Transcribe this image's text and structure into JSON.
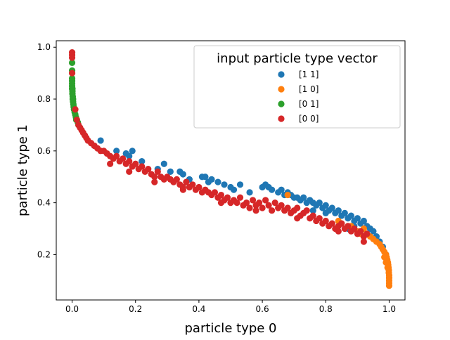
{
  "chart_data": {
    "type": "scatter",
    "title": "",
    "xlabel": "particle type 0",
    "ylabel": "particle type 1",
    "xlim": [
      -0.05,
      1.05
    ],
    "ylim": [
      0.025,
      1.025
    ],
    "xticks": [
      0.0,
      0.2,
      0.4,
      0.6,
      0.8,
      1.0
    ],
    "xtick_labels": [
      "0.0",
      "0.2",
      "0.4",
      "0.6",
      "0.8",
      "1.0"
    ],
    "yticks": [
      0.2,
      0.4,
      0.6,
      0.8,
      1.0
    ],
    "ytick_labels": [
      "0.2",
      "0.4",
      "0.6",
      "0.8",
      "1.0"
    ],
    "grid": false,
    "legend": {
      "title": "input particle type vector",
      "placement": "top-right"
    },
    "series": [
      {
        "name": "[1 1]",
        "color": "#1f77b4",
        "points": [
          [
            0.09,
            0.64
          ],
          [
            0.14,
            0.6
          ],
          [
            0.17,
            0.59
          ],
          [
            0.18,
            0.58
          ],
          [
            0.19,
            0.6
          ],
          [
            0.22,
            0.56
          ],
          [
            0.27,
            0.53
          ],
          [
            0.29,
            0.55
          ],
          [
            0.31,
            0.52
          ],
          [
            0.34,
            0.52
          ],
          [
            0.35,
            0.51
          ],
          [
            0.37,
            0.49
          ],
          [
            0.41,
            0.5
          ],
          [
            0.42,
            0.5
          ],
          [
            0.43,
            0.48
          ],
          [
            0.44,
            0.49
          ],
          [
            0.46,
            0.48
          ],
          [
            0.48,
            0.47
          ],
          [
            0.5,
            0.46
          ],
          [
            0.51,
            0.45
          ],
          [
            0.53,
            0.47
          ],
          [
            0.56,
            0.44
          ],
          [
            0.6,
            0.46
          ],
          [
            0.61,
            0.47
          ],
          [
            0.62,
            0.46
          ],
          [
            0.63,
            0.45
          ],
          [
            0.65,
            0.44
          ],
          [
            0.66,
            0.45
          ],
          [
            0.67,
            0.43
          ],
          [
            0.68,
            0.44
          ],
          [
            0.69,
            0.43
          ],
          [
            0.7,
            0.42
          ],
          [
            0.71,
            0.42
          ],
          [
            0.72,
            0.41
          ],
          [
            0.73,
            0.42
          ],
          [
            0.74,
            0.4
          ],
          [
            0.75,
            0.41
          ],
          [
            0.76,
            0.4
          ],
          [
            0.77,
            0.39
          ],
          [
            0.78,
            0.4
          ],
          [
            0.79,
            0.38
          ],
          [
            0.8,
            0.39
          ],
          [
            0.81,
            0.37
          ],
          [
            0.82,
            0.38
          ],
          [
            0.83,
            0.36
          ],
          [
            0.84,
            0.37
          ],
          [
            0.85,
            0.35
          ],
          [
            0.86,
            0.36
          ],
          [
            0.87,
            0.34
          ],
          [
            0.88,
            0.35
          ],
          [
            0.89,
            0.33
          ],
          [
            0.9,
            0.34
          ],
          [
            0.91,
            0.32
          ],
          [
            0.92,
            0.33
          ],
          [
            0.93,
            0.31
          ],
          [
            0.94,
            0.3
          ],
          [
            0.95,
            0.29
          ],
          [
            0.96,
            0.27
          ],
          [
            0.97,
            0.25
          ],
          [
            0.98,
            0.23
          ],
          [
            0.99,
            0.2
          ],
          [
            0.87,
            0.3
          ],
          [
            0.89,
            0.31
          ],
          [
            0.8,
            0.36
          ],
          [
            0.76,
            0.37
          ]
        ]
      },
      {
        "name": "[1 0]",
        "color": "#ff7f0e",
        "points": [
          [
            0.68,
            0.43
          ],
          [
            0.84,
            0.33
          ],
          [
            0.88,
            0.31
          ],
          [
            0.9,
            0.29
          ],
          [
            0.92,
            0.3
          ],
          [
            0.93,
            0.28
          ],
          [
            0.94,
            0.27
          ],
          [
            0.95,
            0.26
          ],
          [
            0.96,
            0.25
          ],
          [
            0.97,
            0.24
          ],
          [
            0.975,
            0.23
          ],
          [
            0.98,
            0.22
          ],
          [
            0.985,
            0.21
          ],
          [
            0.99,
            0.2
          ],
          [
            0.992,
            0.19
          ],
          [
            0.994,
            0.18
          ],
          [
            0.996,
            0.17
          ],
          [
            0.997,
            0.16
          ],
          [
            0.998,
            0.15
          ],
          [
            0.999,
            0.14
          ],
          [
            0.999,
            0.13
          ],
          [
            1.0,
            0.12
          ],
          [
            1.0,
            0.11
          ],
          [
            1.0,
            0.1
          ],
          [
            1.0,
            0.09
          ],
          [
            1.0,
            0.08
          ],
          [
            0.985,
            0.19
          ],
          [
            0.99,
            0.17
          ],
          [
            0.995,
            0.15
          ],
          [
            0.91,
            0.28
          ]
        ]
      },
      {
        "name": "[0 1]",
        "color": "#2ca02c",
        "points": [
          [
            0.0,
            0.94
          ],
          [
            0.0,
            0.91
          ],
          [
            0.0,
            0.88
          ],
          [
            0.0,
            0.86
          ],
          [
            0.0,
            0.85
          ],
          [
            0.0,
            0.84
          ],
          [
            0.001,
            0.83
          ],
          [
            0.001,
            0.82
          ],
          [
            0.002,
            0.81
          ],
          [
            0.002,
            0.8
          ],
          [
            0.003,
            0.79
          ],
          [
            0.004,
            0.78
          ],
          [
            0.005,
            0.77
          ],
          [
            0.006,
            0.76
          ],
          [
            0.008,
            0.75
          ],
          [
            0.01,
            0.74
          ],
          [
            0.012,
            0.73
          ],
          [
            0.015,
            0.72
          ],
          [
            0.018,
            0.71
          ],
          [
            0.02,
            0.7
          ],
          [
            0.0,
            0.87
          ],
          [
            0.001,
            0.84
          ],
          [
            0.003,
            0.8
          ],
          [
            0.007,
            0.76
          ],
          [
            0.013,
            0.72
          ]
        ]
      },
      {
        "name": "[0 0]",
        "color": "#d62728",
        "points": [
          [
            0.0,
            0.98
          ],
          [
            0.0,
            0.97
          ],
          [
            0.0,
            0.96
          ],
          [
            0.0,
            0.9
          ],
          [
            0.01,
            0.76
          ],
          [
            0.015,
            0.72
          ],
          [
            0.02,
            0.7
          ],
          [
            0.025,
            0.69
          ],
          [
            0.03,
            0.68
          ],
          [
            0.035,
            0.67
          ],
          [
            0.04,
            0.66
          ],
          [
            0.045,
            0.65
          ],
          [
            0.05,
            0.64
          ],
          [
            0.06,
            0.63
          ],
          [
            0.07,
            0.62
          ],
          [
            0.08,
            0.61
          ],
          [
            0.09,
            0.6
          ],
          [
            0.1,
            0.6
          ],
          [
            0.11,
            0.59
          ],
          [
            0.12,
            0.58
          ],
          [
            0.13,
            0.57
          ],
          [
            0.14,
            0.58
          ],
          [
            0.15,
            0.56
          ],
          [
            0.16,
            0.57
          ],
          [
            0.17,
            0.55
          ],
          [
            0.18,
            0.56
          ],
          [
            0.19,
            0.54
          ],
          [
            0.2,
            0.55
          ],
          [
            0.21,
            0.53
          ],
          [
            0.22,
            0.54
          ],
          [
            0.23,
            0.52
          ],
          [
            0.24,
            0.53
          ],
          [
            0.25,
            0.51
          ],
          [
            0.26,
            0.5
          ],
          [
            0.27,
            0.52
          ],
          [
            0.28,
            0.5
          ],
          [
            0.29,
            0.49
          ],
          [
            0.3,
            0.5
          ],
          [
            0.31,
            0.49
          ],
          [
            0.32,
            0.48
          ],
          [
            0.33,
            0.49
          ],
          [
            0.34,
            0.47
          ],
          [
            0.35,
            0.46
          ],
          [
            0.36,
            0.48
          ],
          [
            0.37,
            0.46
          ],
          [
            0.38,
            0.47
          ],
          [
            0.39,
            0.45
          ],
          [
            0.4,
            0.46
          ],
          [
            0.41,
            0.44
          ],
          [
            0.42,
            0.45
          ],
          [
            0.43,
            0.44
          ],
          [
            0.44,
            0.43
          ],
          [
            0.45,
            0.44
          ],
          [
            0.46,
            0.42
          ],
          [
            0.47,
            0.43
          ],
          [
            0.48,
            0.41
          ],
          [
            0.49,
            0.42
          ],
          [
            0.5,
            0.4
          ],
          [
            0.51,
            0.41
          ],
          [
            0.52,
            0.4
          ],
          [
            0.53,
            0.42
          ],
          [
            0.54,
            0.39
          ],
          [
            0.55,
            0.4
          ],
          [
            0.56,
            0.38
          ],
          [
            0.57,
            0.41
          ],
          [
            0.58,
            0.39
          ],
          [
            0.59,
            0.4
          ],
          [
            0.6,
            0.38
          ],
          [
            0.61,
            0.41
          ],
          [
            0.62,
            0.39
          ],
          [
            0.63,
            0.37
          ],
          [
            0.64,
            0.4
          ],
          [
            0.65,
            0.38
          ],
          [
            0.66,
            0.39
          ],
          [
            0.67,
            0.37
          ],
          [
            0.68,
            0.38
          ],
          [
            0.69,
            0.36
          ],
          [
            0.7,
            0.37
          ],
          [
            0.71,
            0.38
          ],
          [
            0.72,
            0.35
          ],
          [
            0.73,
            0.36
          ],
          [
            0.74,
            0.37
          ],
          [
            0.75,
            0.34
          ],
          [
            0.76,
            0.35
          ],
          [
            0.77,
            0.33
          ],
          [
            0.78,
            0.34
          ],
          [
            0.79,
            0.32
          ],
          [
            0.8,
            0.33
          ],
          [
            0.81,
            0.31
          ],
          [
            0.82,
            0.32
          ],
          [
            0.83,
            0.3
          ],
          [
            0.84,
            0.31
          ],
          [
            0.85,
            0.32
          ],
          [
            0.86,
            0.3
          ],
          [
            0.87,
            0.31
          ],
          [
            0.88,
            0.29
          ],
          [
            0.89,
            0.3
          ],
          [
            0.9,
            0.28
          ],
          [
            0.91,
            0.29
          ],
          [
            0.92,
            0.27
          ],
          [
            0.93,
            0.28
          ],
          [
            0.12,
            0.55
          ],
          [
            0.18,
            0.52
          ],
          [
            0.26,
            0.48
          ],
          [
            0.35,
            0.45
          ],
          [
            0.47,
            0.4
          ],
          [
            0.58,
            0.37
          ],
          [
            0.71,
            0.34
          ],
          [
            0.84,
            0.29
          ],
          [
            0.92,
            0.25
          ]
        ]
      }
    ]
  }
}
